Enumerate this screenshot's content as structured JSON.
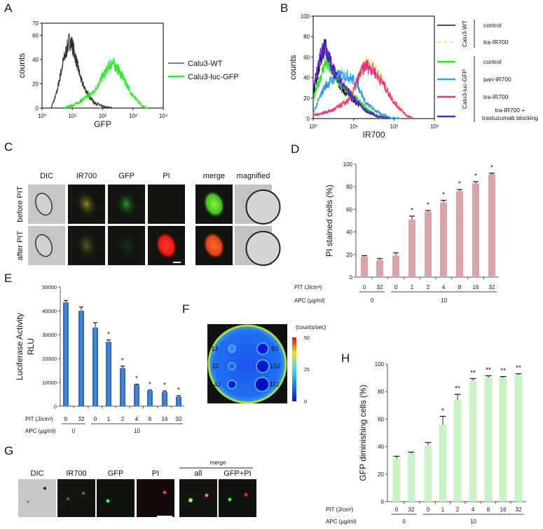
{
  "panels": {
    "A": "A",
    "B": "B",
    "C": "C",
    "D": "D",
    "E": "E",
    "F": "F",
    "G": "G",
    "H": "H"
  },
  "chart_data": [
    {
      "panel": "A",
      "type": "line",
      "subtype": "histogram",
      "xlabel": "GFP",
      "ylabel": "counts",
      "xscale": "log",
      "xlim": [
        1,
        10000
      ],
      "ylim": [
        0,
        70
      ],
      "xticks": [
        "10⁰",
        "10¹",
        "10²",
        "10³",
        "10⁴"
      ],
      "yticks": [
        "0",
        "20",
        "40",
        "60",
        "70"
      ],
      "legend_position": "right",
      "series": [
        {
          "name": "Calu3-WT",
          "color": "#333333",
          "x": [
            2,
            3,
            5,
            8,
            10,
            20,
            30,
            50,
            100,
            200
          ],
          "y": [
            0,
            12,
            38,
            56,
            52,
            22,
            13,
            5,
            1,
            0
          ]
        },
        {
          "name": "Calu3-luc-GFP",
          "color": "#33e833",
          "x": [
            5,
            10,
            20,
            50,
            100,
            200,
            300,
            500,
            1000,
            2000,
            3000
          ],
          "y": [
            0,
            2,
            6,
            13,
            26,
            38,
            33,
            24,
            10,
            2,
            0
          ]
        }
      ]
    },
    {
      "panel": "B",
      "type": "line",
      "subtype": "histogram",
      "xlabel": "IR700",
      "ylabel": "counts",
      "xscale": "log",
      "xlim": [
        1,
        1000
      ],
      "ylim": [
        0,
        100
      ],
      "xticks": [
        "10⁰",
        "10¹",
        "10²",
        "10³"
      ],
      "yticks": [
        "0",
        "20",
        "40",
        "60",
        "80",
        "100"
      ],
      "legend_position": "right",
      "legend_groups": [
        {
          "group": "Calu3-WT",
          "items": [
            {
              "label": [
                "control"
              ],
              "color": "#111111",
              "dashed": false
            },
            {
              "label": [
                "tra-IR700"
              ],
              "color": "#eee26a",
              "dashed": true
            }
          ]
        },
        {
          "group": "Calu3-luc-GFP",
          "items": [
            {
              "label": [
                "control"
              ],
              "color": "#2ee02e",
              "dashed": false
            },
            {
              "label": [
                "pan-IR700"
              ],
              "color": "#2a9ee8",
              "dashed": false
            },
            {
              "label": [
                "tra-IR700"
              ],
              "color": "#e8307e",
              "dashed": false
            },
            {
              "label": [
                "tra-IR700 +",
                "trastuzumab blocking"
              ],
              "color": "#5a22c4",
              "dashed": false
            }
          ]
        }
      ],
      "series": [
        {
          "name": "Calu3-WT control",
          "color": "#111111",
          "x": [
            1,
            1.5,
            2,
            3,
            5,
            10,
            20,
            40,
            80
          ],
          "y": [
            25,
            55,
            72,
            50,
            30,
            18,
            8,
            2,
            0
          ]
        },
        {
          "name": "Calu3-WT tra-IR700",
          "color": "#eee26a",
          "x": [
            1,
            3,
            8,
            15,
            20,
            30,
            50,
            100,
            200,
            300
          ],
          "y": [
            3,
            8,
            20,
            45,
            55,
            50,
            38,
            18,
            4,
            0
          ]
        },
        {
          "name": "Calu3-luc-GFP control",
          "color": "#2ee02e",
          "x": [
            1,
            1.5,
            2,
            3,
            5,
            10,
            20,
            40,
            80
          ],
          "y": [
            18,
            40,
            55,
            45,
            32,
            22,
            10,
            2,
            0
          ]
        },
        {
          "name": "Calu3-luc-GFP pan-IR700",
          "color": "#2a9ee8",
          "x": [
            1,
            1.5,
            2,
            4,
            7,
            12,
            20,
            40,
            80,
            150
          ],
          "y": [
            5,
            22,
            32,
            42,
            42,
            35,
            15,
            6,
            1,
            0
          ]
        },
        {
          "name": "Calu3-luc-GFP tra-IR700",
          "color": "#e8307e",
          "x": [
            1,
            3,
            8,
            15,
            20,
            30,
            50,
            100,
            200,
            300
          ],
          "y": [
            3,
            8,
            18,
            45,
            52,
            48,
            36,
            16,
            3,
            0
          ]
        },
        {
          "name": "Calu3-luc-GFP tra-IR700 + trastuzumab blocking",
          "color": "#5a22c4",
          "x": [
            1,
            1.5,
            2,
            3,
            5,
            10,
            20,
            40,
            80
          ],
          "y": [
            30,
            60,
            72,
            48,
            35,
            20,
            8,
            2,
            0
          ]
        }
      ]
    },
    {
      "panel": "D",
      "type": "bar",
      "ylabel": "PI stained cells (%)",
      "ylim": [
        0,
        100
      ],
      "yticks": [
        "0",
        "20",
        "40",
        "60",
        "80",
        "100"
      ],
      "color": "#d9a5a8",
      "pit_label": "PIT (J/cm²)",
      "apc_label": "APC (μg/ml)",
      "categories": [
        "0",
        "32",
        "0",
        "1",
        "2",
        "4",
        "8",
        "16",
        "32"
      ],
      "values": [
        18,
        15,
        19,
        51,
        58,
        66,
        76,
        83,
        91
      ],
      "errors": [
        1,
        1.5,
        2.5,
        3,
        1,
        2,
        1.5,
        1.5,
        1
      ],
      "significance": [
        "",
        "",
        "",
        "*",
        "*",
        "*",
        "*",
        "*",
        "*"
      ],
      "apc_groups": [
        {
          "label": "0",
          "from": 0,
          "to": 1
        },
        {
          "label": "10",
          "from": 2,
          "to": 8
        }
      ]
    },
    {
      "panel": "E",
      "type": "bar",
      "ylabel": [
        "Luciferase Activity",
        "RLU"
      ],
      "ylim": [
        0,
        50000
      ],
      "yticks": [
        "0",
        "10000",
        "20000",
        "30000",
        "40000",
        "50000"
      ],
      "color": "#3a7bd0",
      "pit_label": "PIT (J/cm²)",
      "apc_label": "APC (μg/ml)",
      "categories": [
        "0",
        "32",
        "0",
        "1",
        "2",
        "4",
        "8",
        "16",
        "32"
      ],
      "values": [
        43500,
        40000,
        33000,
        27000,
        16000,
        9000,
        6500,
        6000,
        4000
      ],
      "errors": [
        800,
        1600,
        2000,
        800,
        800,
        200,
        300,
        400,
        400
      ],
      "significance": [
        "",
        "",
        "",
        "*",
        "*",
        "*",
        "*",
        "*",
        "*"
      ],
      "apc_groups": [
        {
          "label": "0",
          "from": 0,
          "to": 1
        },
        {
          "label": "10",
          "from": 2,
          "to": 8
        }
      ]
    },
    {
      "panel": "H",
      "type": "bar",
      "ylabel": "GFP diminishing cells (%)",
      "ylim": [
        0,
        100
      ],
      "yticks": [
        "0",
        "20",
        "40",
        "60",
        "80",
        "100"
      ],
      "color": "#c8f2c6",
      "pit_label": "PIT (J/cm²)",
      "apc_label": "APC (μg/ml)",
      "categories": [
        "0",
        "32",
        "0",
        "1",
        "2",
        "4",
        "8",
        "16",
        "32"
      ],
      "values": [
        31,
        35,
        41,
        56,
        74,
        88,
        90,
        90,
        92
      ],
      "errors": [
        2,
        1,
        2,
        6,
        4,
        1.5,
        1.5,
        1,
        1
      ],
      "significance": [
        "",
        "",
        "",
        "*",
        "**",
        "**",
        "**",
        "**",
        "**"
      ],
      "apc_groups": [
        {
          "label": "0",
          "from": 0,
          "to": 1
        },
        {
          "label": "10",
          "from": 2,
          "to": 8
        }
      ]
    }
  ],
  "panel_c": {
    "columns": [
      "DIC",
      "IR700",
      "GFP",
      "PI",
      "merge",
      "magnified"
    ],
    "rows": [
      "before PIT",
      "after PIT"
    ]
  },
  "panel_f": {
    "unit": "(counts/sec)",
    "colorbar_ticks": [
      "50",
      "25",
      "0"
    ],
    "wells": [
      "1J",
      "2J",
      "4J",
      "8J",
      "16J",
      "32J"
    ]
  },
  "panel_g": {
    "columns": [
      "DIC",
      "IR700",
      "GFP",
      "PI",
      "all",
      "GFP+PI"
    ],
    "merge_label": "merge"
  }
}
